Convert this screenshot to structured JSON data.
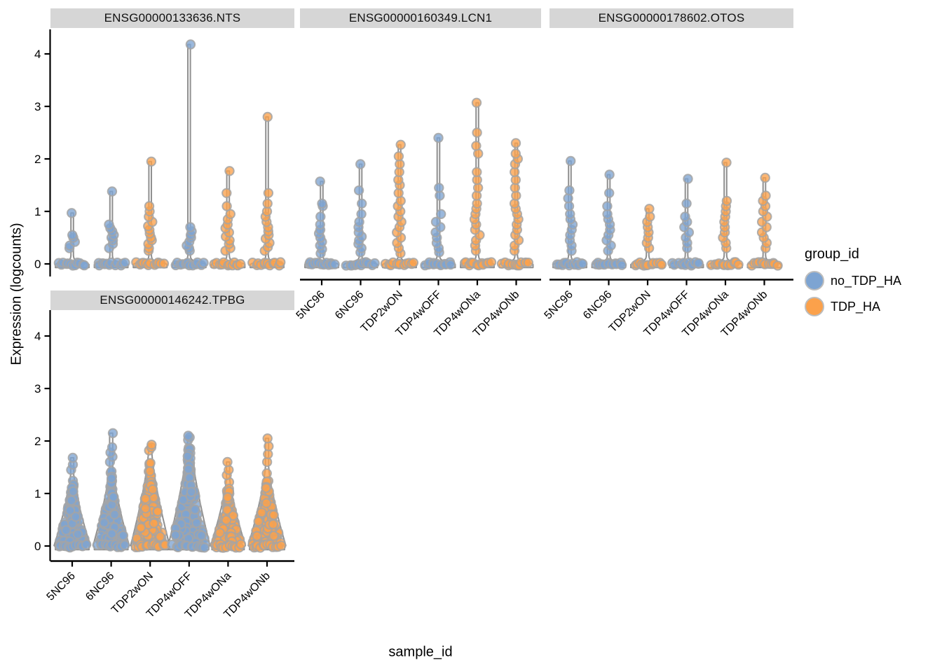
{
  "figure": {
    "xlabel": "sample_id",
    "ylabel": "Expression (logcounts)",
    "background": "#FFFFFF"
  },
  "legend": {
    "title": "group_id",
    "items": [
      {
        "label": "no_TDP_HA",
        "color": "#7DA4D2"
      },
      {
        "label": "TDP_HA",
        "color": "#FBA14B"
      }
    ]
  },
  "colors": {
    "no_TDP_HA": "#7DA4D2",
    "TDP_HA": "#FBA14B",
    "point_stroke": "#A5A5A5",
    "violin_stroke": "#909090",
    "violin_fill": "#FCFCFC",
    "strip_background": "#D6D6D6",
    "axis": "#000000"
  },
  "axes": {
    "y_ticks": [
      0,
      1,
      2,
      3,
      4
    ],
    "y_range": [
      0,
      4.2
    ],
    "samples": [
      "5NC96",
      "6NC96",
      "TDP2wON",
      "TDP4wOFF",
      "TDP4wONa",
      "TDP4wONb"
    ],
    "x_tick_angle_deg": 45
  },
  "chart_data": [
    {
      "type": "violin-jitter",
      "title": "ENSG00000133636.NTS",
      "row": 0,
      "col": 0,
      "show_x_axis": false,
      "show_y_axis": true,
      "violins": [
        {
          "sample": "5NC96",
          "group": "no_TDP_HA",
          "shape": "spike",
          "max": 0.97,
          "n_zero": 12,
          "width_hint": 24,
          "tail": [
            0.3,
            0.35,
            0.42,
            0.5,
            0.55,
            0.97
          ]
        },
        {
          "sample": "6NC96",
          "group": "no_TDP_HA",
          "shape": "spike",
          "max": 1.38,
          "n_zero": 12,
          "width_hint": 24,
          "tail": [
            0.3,
            0.38,
            0.45,
            0.5,
            0.55,
            0.62,
            0.68,
            0.75,
            1.38
          ]
        },
        {
          "sample": "TDP2wON",
          "group": "TDP_HA",
          "shape": "spike",
          "max": 1.95,
          "n_zero": 12,
          "width_hint": 24,
          "tail": [
            0.25,
            0.3,
            0.38,
            0.45,
            0.5,
            0.58,
            0.65,
            0.72,
            0.8,
            0.9,
            1.0,
            1.1,
            1.95
          ]
        },
        {
          "sample": "TDP4wOFF",
          "group": "no_TDP_HA",
          "shape": "spike",
          "max": 4.18,
          "n_zero": 12,
          "width_hint": 24,
          "tail": [
            0.25,
            0.3,
            0.35,
            0.42,
            0.5,
            0.55,
            0.62,
            0.7,
            4.18
          ]
        },
        {
          "sample": "TDP4wONa",
          "group": "TDP_HA",
          "shape": "spike",
          "max": 1.77,
          "n_zero": 12,
          "width_hint": 24,
          "tail": [
            0.25,
            0.3,
            0.38,
            0.45,
            0.52,
            0.6,
            0.68,
            0.75,
            0.85,
            0.95,
            1.1,
            1.35,
            1.77
          ]
        },
        {
          "sample": "TDP4wONb",
          "group": "TDP_HA",
          "shape": "spike",
          "max": 2.8,
          "n_zero": 12,
          "width_hint": 24,
          "tail": [
            0.25,
            0.32,
            0.4,
            0.48,
            0.55,
            0.62,
            0.7,
            0.8,
            0.9,
            1.0,
            1.15,
            1.35,
            2.8
          ]
        }
      ]
    },
    {
      "type": "violin-jitter",
      "title": "ENSG00000160349.LCN1",
      "row": 0,
      "col": 1,
      "show_x_axis": true,
      "show_y_axis": false,
      "violins": [
        {
          "sample": "5NC96",
          "group": "no_TDP_HA",
          "shape": "spike",
          "max": 1.57,
          "n_zero": 12,
          "width_hint": 24,
          "tail": [
            0.2,
            0.28,
            0.35,
            0.42,
            0.5,
            0.58,
            0.65,
            0.75,
            0.9,
            1.1,
            1.15,
            1.57
          ]
        },
        {
          "sample": "6NC96",
          "group": "no_TDP_HA",
          "shape": "spike",
          "max": 1.9,
          "n_zero": 12,
          "width_hint": 24,
          "tail": [
            0.22,
            0.3,
            0.38,
            0.45,
            0.52,
            0.6,
            0.7,
            0.8,
            0.95,
            1.15,
            1.4,
            1.9
          ]
        },
        {
          "sample": "TDP2wON",
          "group": "TDP_HA",
          "shape": "spike",
          "max": 2.27,
          "n_zero": 12,
          "width_hint": 24,
          "tail": [
            0.2,
            0.3,
            0.4,
            0.5,
            0.6,
            0.7,
            0.8,
            0.9,
            1.0,
            1.1,
            1.2,
            1.35,
            1.5,
            1.6,
            1.75,
            1.9,
            2.05,
            2.27
          ]
        },
        {
          "sample": "TDP4wOFF",
          "group": "no_TDP_HA",
          "shape": "spike",
          "max": 2.4,
          "n_zero": 12,
          "width_hint": 24,
          "tail": [
            0.22,
            0.3,
            0.4,
            0.5,
            0.6,
            0.7,
            0.8,
            0.95,
            1.3,
            1.45,
            2.4
          ]
        },
        {
          "sample": "TDP4wONa",
          "group": "TDP_HA",
          "shape": "spike",
          "max": 3.07,
          "n_zero": 12,
          "width_hint": 24,
          "tail": [
            0.25,
            0.35,
            0.45,
            0.55,
            0.65,
            0.75,
            0.85,
            0.95,
            1.05,
            1.15,
            1.3,
            1.45,
            1.6,
            1.75,
            2.1,
            2.25,
            2.5,
            3.07
          ]
        },
        {
          "sample": "TDP4wONb",
          "group": "TDP_HA",
          "shape": "spike",
          "max": 2.3,
          "n_zero": 12,
          "width_hint": 24,
          "tail": [
            0.25,
            0.35,
            0.45,
            0.55,
            0.65,
            0.75,
            0.85,
            0.95,
            1.05,
            1.15,
            1.3,
            1.45,
            1.6,
            1.75,
            1.9,
            2.0,
            2.1,
            2.3
          ]
        }
      ]
    },
    {
      "type": "violin-jitter",
      "title": "ENSG00000178602.OTOS",
      "row": 0,
      "col": 2,
      "show_x_axis": true,
      "show_y_axis": false,
      "violins": [
        {
          "sample": "5NC96",
          "group": "no_TDP_HA",
          "shape": "spike",
          "max": 1.96,
          "n_zero": 12,
          "width_hint": 24,
          "tail": [
            0.25,
            0.35,
            0.45,
            0.55,
            0.65,
            0.75,
            0.85,
            0.95,
            1.1,
            1.25,
            1.4,
            1.96
          ]
        },
        {
          "sample": "6NC96",
          "group": "no_TDP_HA",
          "shape": "spike",
          "max": 1.7,
          "n_zero": 12,
          "width_hint": 24,
          "tail": [
            0.25,
            0.35,
            0.45,
            0.55,
            0.65,
            0.75,
            0.85,
            0.95,
            1.1,
            1.35,
            1.7
          ]
        },
        {
          "sample": "TDP2wON",
          "group": "TDP_HA",
          "shape": "spike",
          "max": 1.05,
          "n_zero": 12,
          "width_hint": 24,
          "tail": [
            0.3,
            0.4,
            0.5,
            0.6,
            0.7,
            0.8,
            0.9,
            1.05
          ]
        },
        {
          "sample": "TDP4wOFF",
          "group": "no_TDP_HA",
          "shape": "spike",
          "max": 1.62,
          "n_zero": 12,
          "width_hint": 24,
          "tail": [
            0.3,
            0.4,
            0.5,
            0.6,
            0.7,
            0.8,
            0.9,
            1.15,
            1.62
          ]
        },
        {
          "sample": "TDP4wONa",
          "group": "TDP_HA",
          "shape": "spike",
          "max": 1.93,
          "n_zero": 12,
          "width_hint": 24,
          "tail": [
            0.3,
            0.4,
            0.5,
            0.6,
            0.7,
            0.8,
            0.9,
            1.0,
            1.1,
            1.2,
            1.93
          ]
        },
        {
          "sample": "TDP4wONb",
          "group": "TDP_HA",
          "shape": "spike",
          "max": 1.64,
          "n_zero": 12,
          "width_hint": 24,
          "tail": [
            0.3,
            0.4,
            0.5,
            0.6,
            0.7,
            0.8,
            0.9,
            1.0,
            1.1,
            1.2,
            1.3,
            1.64
          ]
        }
      ]
    },
    {
      "type": "violin-jitter",
      "title": "ENSG00000146242.TPBG",
      "row": 1,
      "col": 0,
      "show_x_axis": true,
      "show_y_axis": true,
      "violins": [
        {
          "sample": "5NC96",
          "group": "no_TDP_HA",
          "shape": "bell",
          "max": 1.68,
          "n_zero": 12,
          "width_hint": 24,
          "body": {
            "top": 1.35,
            "n": 150
          },
          "tail": [
            1.45,
            1.55,
            1.68
          ]
        },
        {
          "sample": "6NC96",
          "group": "no_TDP_HA",
          "shape": "bell",
          "max": 2.15,
          "n_zero": 12,
          "width_hint": 24,
          "body": {
            "top": 1.5,
            "n": 150
          },
          "tail": [
            1.6,
            1.7,
            1.78,
            1.88,
            2.15
          ]
        },
        {
          "sample": "TDP2wON",
          "group": "TDP_HA",
          "shape": "bell",
          "max": 1.93,
          "n_zero": 12,
          "width_hint": 26,
          "body": {
            "top": 1.78,
            "n": 170
          },
          "tail": [
            1.82,
            1.88,
            1.93
          ]
        },
        {
          "sample": "TDP4wOFF",
          "group": "no_TDP_HA",
          "shape": "bell",
          "max": 2.1,
          "n_zero": 12,
          "width_hint": 28,
          "body": {
            "top": 1.98,
            "n": 200
          },
          "tail": [
            2.02,
            2.07,
            2.1
          ]
        },
        {
          "sample": "TDP4wONa",
          "group": "TDP_HA",
          "shape": "bell",
          "max": 1.6,
          "n_zero": 12,
          "width_hint": 23,
          "body": {
            "top": 1.28,
            "n": 130
          },
          "tail": [
            1.35,
            1.45,
            1.6
          ]
        },
        {
          "sample": "TDP4wONb",
          "group": "TDP_HA",
          "shape": "bell",
          "max": 2.05,
          "n_zero": 12,
          "width_hint": 25,
          "body": {
            "top": 1.5,
            "n": 140
          },
          "tail": [
            1.6,
            1.75,
            1.9,
            2.05
          ]
        }
      ]
    }
  ]
}
